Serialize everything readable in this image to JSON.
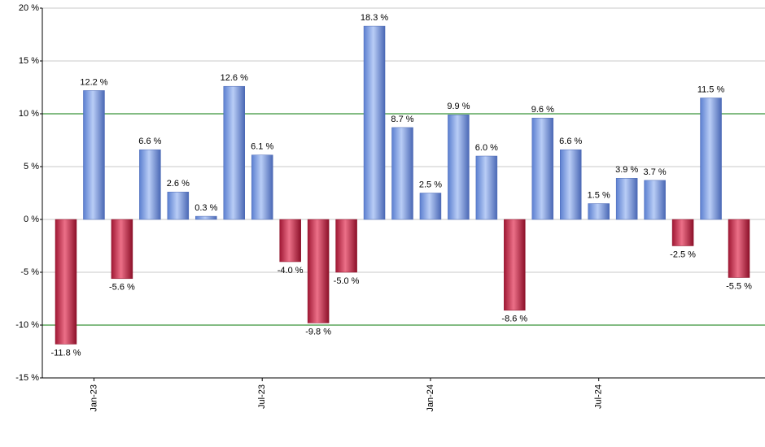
{
  "chart_data": {
    "type": "bar",
    "categories": [
      null,
      "Jan-23",
      null,
      null,
      null,
      null,
      null,
      "Jul-23",
      null,
      null,
      null,
      null,
      null,
      "Jan-24",
      null,
      null,
      null,
      null,
      null,
      "Jul-24",
      null,
      null,
      null,
      null,
      null
    ],
    "values": [
      -11.8,
      12.2,
      -5.6,
      6.6,
      2.6,
      0.3,
      12.6,
      6.1,
      -4.0,
      -9.8,
      -5.0,
      18.3,
      8.7,
      2.5,
      9.9,
      6.0,
      -8.6,
      9.6,
      6.6,
      1.5,
      3.9,
      3.7,
      -2.5,
      11.5,
      -5.5
    ],
    "value_labels": [
      "-11.8 %",
      "12.2 %",
      "-5.6 %",
      "6.6 %",
      "2.6 %",
      "0.3 %",
      "12.6 %",
      "6.1 %",
      "-4.0 %",
      "-9.8 %",
      "-5.0 %",
      "18.3 %",
      "8.7 %",
      "2.5 %",
      "9.9 %",
      "6.0 %",
      "-8.6 %",
      "9.6 %",
      "6.6 %",
      "1.5 %",
      "3.9 %",
      "3.7 %",
      "-2.5 %",
      "11.5 %",
      "-5.5 %"
    ],
    "positive_color": "#7b9fe6",
    "negative_color": "#c8344f",
    "ylim": [
      -15,
      20
    ],
    "yticks": [
      {
        "value": -15,
        "label": "-15 %"
      },
      {
        "value": -10,
        "label": "-10 %"
      },
      {
        "value": -5,
        "label": "-5 %"
      },
      {
        "value": 0,
        "label": "0 %"
      },
      {
        "value": 5,
        "label": "5 %"
      },
      {
        "value": 10,
        "label": "10 %"
      },
      {
        "value": 15,
        "label": "15 %"
      },
      {
        "value": 20,
        "label": "20 %"
      }
    ],
    "grid": true,
    "reference_lines": [
      10,
      -10
    ],
    "reference_color": "#0a7a0a"
  }
}
